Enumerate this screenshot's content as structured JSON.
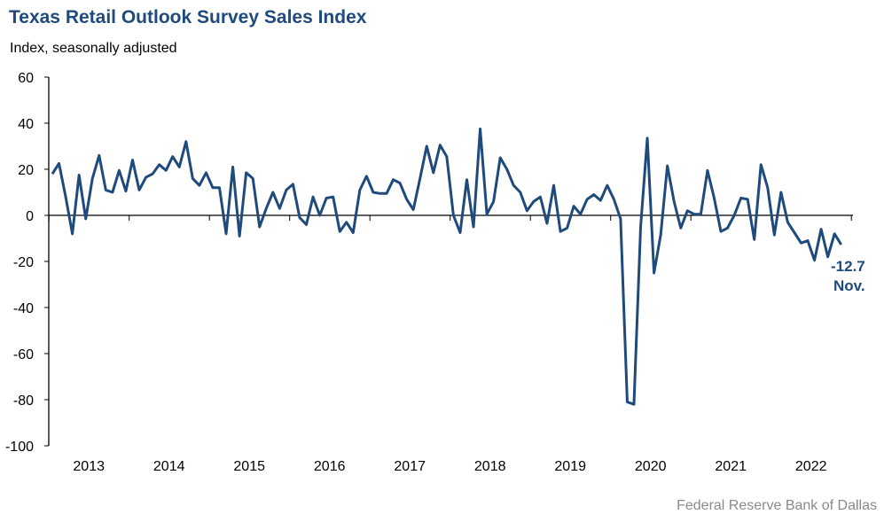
{
  "chart_data": {
    "type": "line",
    "title": "Texas Retail Outlook Survey Sales Index",
    "ylabel": "Index, seasonally adjusted",
    "ylim": [
      -100,
      60
    ],
    "yticks": [
      60,
      40,
      20,
      0,
      -20,
      -40,
      -60,
      -80,
      -100
    ],
    "xticks": [
      "2013",
      "2014",
      "2015",
      "2016",
      "2017",
      "2018",
      "2019",
      "2020",
      "2021",
      "2022"
    ],
    "x_start": "Jan 2013",
    "x_end": "Nov 2022",
    "frequency": "monthly",
    "series": [
      {
        "name": "Sales Index",
        "color": "#1f4a7c",
        "values": [
          18,
          22.5,
          8,
          -8,
          17.5,
          -1.5,
          16,
          26,
          11,
          10,
          19.5,
          10.5,
          24,
          11,
          16.5,
          18,
          22,
          19.5,
          25.5,
          21,
          32,
          16,
          13,
          18.5,
          12,
          12,
          -8,
          21,
          -9,
          18.5,
          16,
          -5,
          3,
          10,
          3,
          11,
          13.5,
          -1,
          -4,
          8,
          0,
          7.5,
          8,
          -7,
          -3,
          -7.5,
          11,
          17,
          10,
          9.5,
          9.5,
          15.5,
          14,
          7,
          2.5,
          16,
          30,
          18.5,
          30.5,
          25.5,
          0,
          -7.5,
          15.5,
          -5,
          37.5,
          0.5,
          6,
          25,
          20,
          13,
          10,
          2,
          6,
          8,
          -3.5,
          13,
          -7,
          -5.5,
          4,
          0.5,
          7,
          9,
          6.5,
          13,
          7,
          -1.5,
          -81,
          -82,
          -5,
          33.5,
          -25,
          -8.5,
          21.5,
          6,
          -5.5,
          2,
          0.5,
          0.5,
          19.5,
          7.5,
          -7,
          -5.5,
          0,
          7.5,
          7,
          -10.5,
          22,
          12,
          -8.5,
          10,
          -3,
          -7.5,
          -12,
          -11,
          -19.5,
          -6,
          -18,
          -8,
          -12.7
        ]
      }
    ],
    "annotation": {
      "value": "-12.7",
      "label": "Nov."
    }
  },
  "footer": "Federal Reserve Bank of Dallas"
}
